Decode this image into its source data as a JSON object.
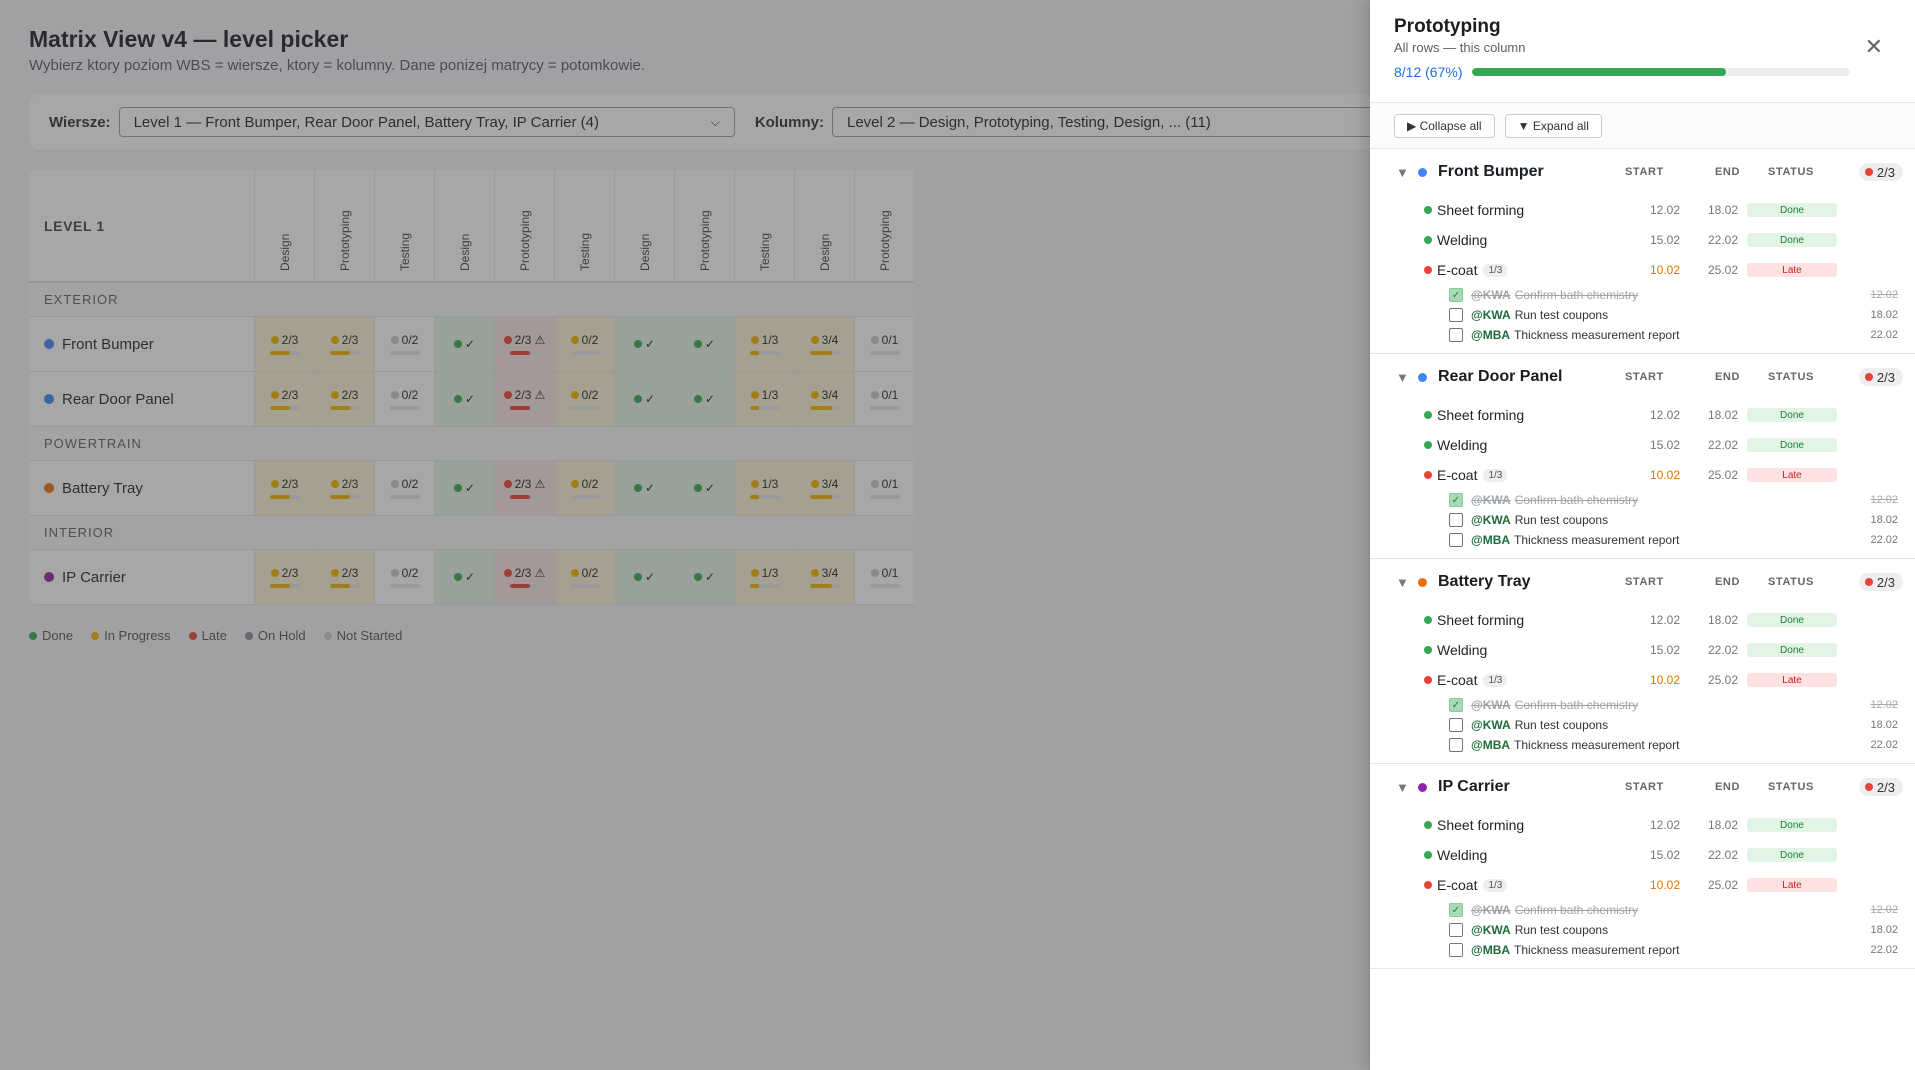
{
  "page": {
    "title": "Matrix View v4 — level picker",
    "subtitle": "Wybierz ktory poziom WBS = wiersze, ktory = kolumny. Dane ponizej matrycy = potomkowie."
  },
  "pickers": {
    "rows_label": "Wiersze:",
    "rows_value": "Level 1 — Front Bumper, Rear Door Panel, Battery Tray, IP Carrier (4)",
    "cols_label": "Kolumny:",
    "cols_value": "Level 2 — Design, Prototyping, Testing, Design, ... (11)"
  },
  "matrix": {
    "corner_label": "LEVEL 1",
    "columns": [
      "Design",
      "Prototyping",
      "Testing",
      "Design",
      "Prototyping",
      "Testing",
      "Design",
      "Prototyping",
      "Testing",
      "Design",
      "Prototyping"
    ],
    "groups": [
      {
        "label": "EXTERIOR",
        "rows": [
          {
            "name": "Front Bumper",
            "color": "#4285f4",
            "cells": [
              {
                "text": "2/3",
                "status": "prog",
                "progress": 0.67
              },
              {
                "text": "2/3",
                "status": "prog",
                "progress": 0.67
              },
              {
                "text": "0/2",
                "status": "none",
                "progress": 0
              },
              {
                "text": "✓",
                "status": "done"
              },
              {
                "text": "2/3 ⚠",
                "status": "late",
                "progress": 0.67
              },
              {
                "text": "0/2",
                "status": "prog",
                "progress": 0
              },
              {
                "text": "✓",
                "status": "done"
              },
              {
                "text": "✓",
                "status": "done"
              },
              {
                "text": "1/3",
                "status": "prog",
                "progress": 0.33
              },
              {
                "text": "3/4",
                "status": "prog",
                "progress": 0.75
              },
              {
                "text": "0/1",
                "status": "none",
                "progress": 0
              }
            ]
          },
          {
            "name": "Rear Door Panel",
            "color": "#4285f4",
            "cells": [
              {
                "text": "2/3",
                "status": "prog",
                "progress": 0.67
              },
              {
                "text": "2/3",
                "status": "prog",
                "progress": 0.67
              },
              {
                "text": "0/2",
                "status": "none",
                "progress": 0
              },
              {
                "text": "✓",
                "status": "done"
              },
              {
                "text": "2/3 ⚠",
                "status": "late",
                "progress": 0.67
              },
              {
                "text": "0/2",
                "status": "prog",
                "progress": 0
              },
              {
                "text": "✓",
                "status": "done"
              },
              {
                "text": "✓",
                "status": "done"
              },
              {
                "text": "1/3",
                "status": "prog",
                "progress": 0.33
              },
              {
                "text": "3/4",
                "status": "prog",
                "progress": 0.75
              },
              {
                "text": "0/1",
                "status": "none",
                "progress": 0
              }
            ]
          }
        ]
      },
      {
        "label": "POWERTRAIN",
        "rows": [
          {
            "name": "Battery Tray",
            "color": "#e8710a",
            "cells": [
              {
                "text": "2/3",
                "status": "prog",
                "progress": 0.67
              },
              {
                "text": "2/3",
                "status": "prog",
                "progress": 0.67
              },
              {
                "text": "0/2",
                "status": "none",
                "progress": 0
              },
              {
                "text": "✓",
                "status": "done"
              },
              {
                "text": "2/3 ⚠",
                "status": "late",
                "progress": 0.67
              },
              {
                "text": "0/2",
                "status": "prog",
                "progress": 0
              },
              {
                "text": "✓",
                "status": "done"
              },
              {
                "text": "✓",
                "status": "done"
              },
              {
                "text": "1/3",
                "status": "prog",
                "progress": 0.33
              },
              {
                "text": "3/4",
                "status": "prog",
                "progress": 0.75
              },
              {
                "text": "0/1",
                "status": "none",
                "progress": 0
              }
            ]
          }
        ]
      },
      {
        "label": "INTERIOR",
        "rows": [
          {
            "name": "IP Carrier",
            "color": "#8e24aa",
            "cells": [
              {
                "text": "2/3",
                "status": "prog",
                "progress": 0.67
              },
              {
                "text": "2/3",
                "status": "prog",
                "progress": 0.67
              },
              {
                "text": "0/2",
                "status": "none",
                "progress": 0
              },
              {
                "text": "✓",
                "status": "done"
              },
              {
                "text": "2/3 ⚠",
                "status": "late",
                "progress": 0.67
              },
              {
                "text": "0/2",
                "status": "prog",
                "progress": 0
              },
              {
                "text": "✓",
                "status": "done"
              },
              {
                "text": "✓",
                "status": "done"
              },
              {
                "text": "1/3",
                "status": "prog",
                "progress": 0.33
              },
              {
                "text": "3/4",
                "status": "prog",
                "progress": 0.75
              },
              {
                "text": "0/1",
                "status": "none",
                "progress": 0
              }
            ]
          }
        ]
      }
    ]
  },
  "legend": [
    {
      "label": "Done",
      "color": "#34a853"
    },
    {
      "label": "In Progress",
      "color": "#f6b400"
    },
    {
      "label": "Late",
      "color": "#ea4335"
    },
    {
      "label": "On Hold",
      "color": "#8a8f94"
    },
    {
      "label": "Not Started",
      "color": "#c9ccd0"
    }
  ],
  "status_colors": {
    "done": "#34a853",
    "prog": "#f6b400",
    "late": "#ea4335",
    "none": "#c9ccd0"
  },
  "panel": {
    "title": "Prototyping",
    "subtitle": "All rows — this column",
    "progress_text": "8/12 (67%)",
    "progress": 0.67,
    "close_icon": "✕",
    "collapse_all": "▶ Collapse all",
    "expand_all": "▼ Expand all",
    "col_start": "START",
    "col_end": "END",
    "col_status": "STATUS",
    "sections": [
      {
        "name": "Front Bumper",
        "color": "#4285f4",
        "badge": "2/3",
        "tasks": [
          {
            "name": "Sheet forming",
            "status": "done",
            "start": "12.02",
            "end": "18.02",
            "pill": "Done"
          },
          {
            "name": "Welding",
            "status": "done",
            "start": "15.02",
            "end": "22.02",
            "pill": "Done"
          },
          {
            "name": "E-coat",
            "count": "1/3",
            "status": "late",
            "start": "10.02",
            "end": "25.02",
            "pill": "Late",
            "checks": [
              {
                "who": "@KWA",
                "text": "Confirm bath chemistry",
                "date": "12.02",
                "done": true
              },
              {
                "who": "@KWA",
                "text": "Run test coupons",
                "date": "18.02",
                "done": false
              },
              {
                "who": "@MBA",
                "text": "Thickness measurement report",
                "date": "22.02",
                "done": false
              }
            ]
          }
        ]
      },
      {
        "name": "Rear Door Panel",
        "color": "#4285f4",
        "badge": "2/3",
        "tasks": [
          {
            "name": "Sheet forming",
            "status": "done",
            "start": "12.02",
            "end": "18.02",
            "pill": "Done"
          },
          {
            "name": "Welding",
            "status": "done",
            "start": "15.02",
            "end": "22.02",
            "pill": "Done"
          },
          {
            "name": "E-coat",
            "count": "1/3",
            "status": "late",
            "start": "10.02",
            "end": "25.02",
            "pill": "Late",
            "checks": [
              {
                "who": "@KWA",
                "text": "Confirm bath chemistry",
                "date": "12.02",
                "done": true
              },
              {
                "who": "@KWA",
                "text": "Run test coupons",
                "date": "18.02",
                "done": false
              },
              {
                "who": "@MBA",
                "text": "Thickness measurement report",
                "date": "22.02",
                "done": false
              }
            ]
          }
        ]
      },
      {
        "name": "Battery Tray",
        "color": "#e8710a",
        "badge": "2/3",
        "tasks": [
          {
            "name": "Sheet forming",
            "status": "done",
            "start": "12.02",
            "end": "18.02",
            "pill": "Done"
          },
          {
            "name": "Welding",
            "status": "done",
            "start": "15.02",
            "end": "22.02",
            "pill": "Done"
          },
          {
            "name": "E-coat",
            "count": "1/3",
            "status": "late",
            "start": "10.02",
            "end": "25.02",
            "pill": "Late",
            "checks": [
              {
                "who": "@KWA",
                "text": "Confirm bath chemistry",
                "date": "12.02",
                "done": true
              },
              {
                "who": "@KWA",
                "text": "Run test coupons",
                "date": "18.02",
                "done": false
              },
              {
                "who": "@MBA",
                "text": "Thickness measurement report",
                "date": "22.02",
                "done": false
              }
            ]
          }
        ]
      },
      {
        "name": "IP Carrier",
        "color": "#8e24aa",
        "badge": "2/3",
        "tasks": [
          {
            "name": "Sheet forming",
            "status": "done",
            "start": "12.02",
            "end": "18.02",
            "pill": "Done"
          },
          {
            "name": "Welding",
            "status": "done",
            "start": "15.02",
            "end": "22.02",
            "pill": "Done"
          },
          {
            "name": "E-coat",
            "count": "1/3",
            "status": "late",
            "start": "10.02",
            "end": "25.02",
            "pill": "Late",
            "checks": [
              {
                "who": "@KWA",
                "text": "Confirm bath chemistry",
                "date": "12.02",
                "done": true
              },
              {
                "who": "@KWA",
                "text": "Run test coupons",
                "date": "18.02",
                "done": false
              },
              {
                "who": "@MBA",
                "text": "Thickness measurement report",
                "date": "22.02",
                "done": false
              }
            ]
          }
        ]
      }
    ]
  }
}
